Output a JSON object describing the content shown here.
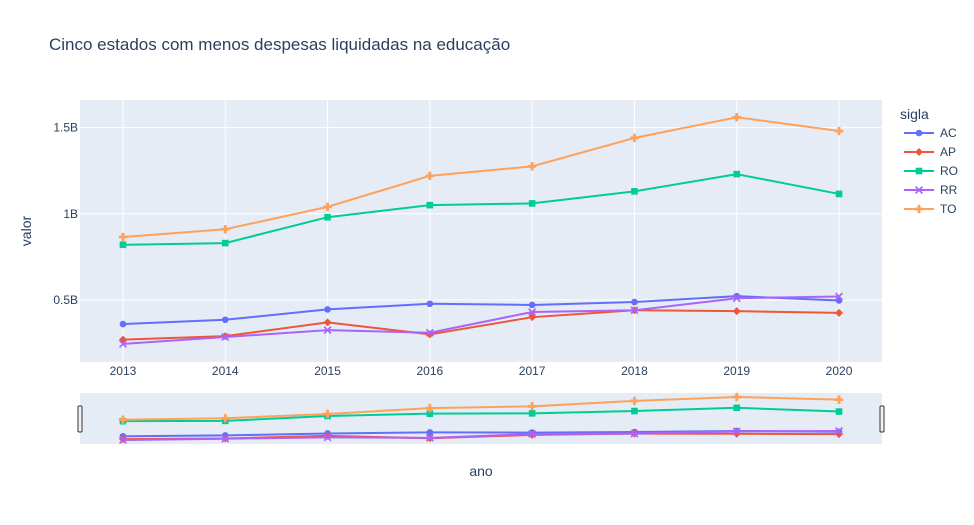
{
  "chart_data": {
    "type": "line",
    "title": "Cinco estados com menos despesas liquidadas na educação",
    "xlabel": "ano",
    "ylabel": "valor",
    "x": [
      2013,
      2014,
      2015,
      2016,
      2017,
      2018,
      2019,
      2020
    ],
    "xlim": [
      2012.58,
      2020.42
    ],
    "ylim": [
      0.14,
      1.66
    ],
    "y_unit": "B",
    "y_ticks": [
      {
        "value": 0.5,
        "label": "0.5B"
      },
      {
        "value": 1.0,
        "label": "1B"
      },
      {
        "value": 1.5,
        "label": "1.5B"
      }
    ],
    "legend_title": "sigla",
    "legend_position": "right",
    "grid": true,
    "range_slider": true,
    "series": [
      {
        "name": "AC",
        "color": "#636efa",
        "marker": "circle",
        "values": [
          0.36,
          0.385,
          0.445,
          0.478,
          0.471,
          0.488,
          0.522,
          0.497
        ]
      },
      {
        "name": "AP",
        "color": "#ef553b",
        "marker": "diamond",
        "values": [
          0.27,
          0.29,
          0.37,
          0.3,
          0.4,
          0.44,
          0.435,
          0.425
        ]
      },
      {
        "name": "RO",
        "color": "#00cc96",
        "marker": "square",
        "values": [
          0.82,
          0.83,
          0.98,
          1.05,
          1.06,
          1.13,
          1.23,
          1.115
        ]
      },
      {
        "name": "RR",
        "color": "#ab63fa",
        "marker": "x",
        "values": [
          0.245,
          0.285,
          0.325,
          0.31,
          0.43,
          0.44,
          0.51,
          0.52
        ]
      },
      {
        "name": "TO",
        "color": "#ffa15a",
        "marker": "cross",
        "values": [
          0.865,
          0.91,
          1.04,
          1.22,
          1.275,
          1.44,
          1.56,
          1.48
        ]
      }
    ]
  }
}
